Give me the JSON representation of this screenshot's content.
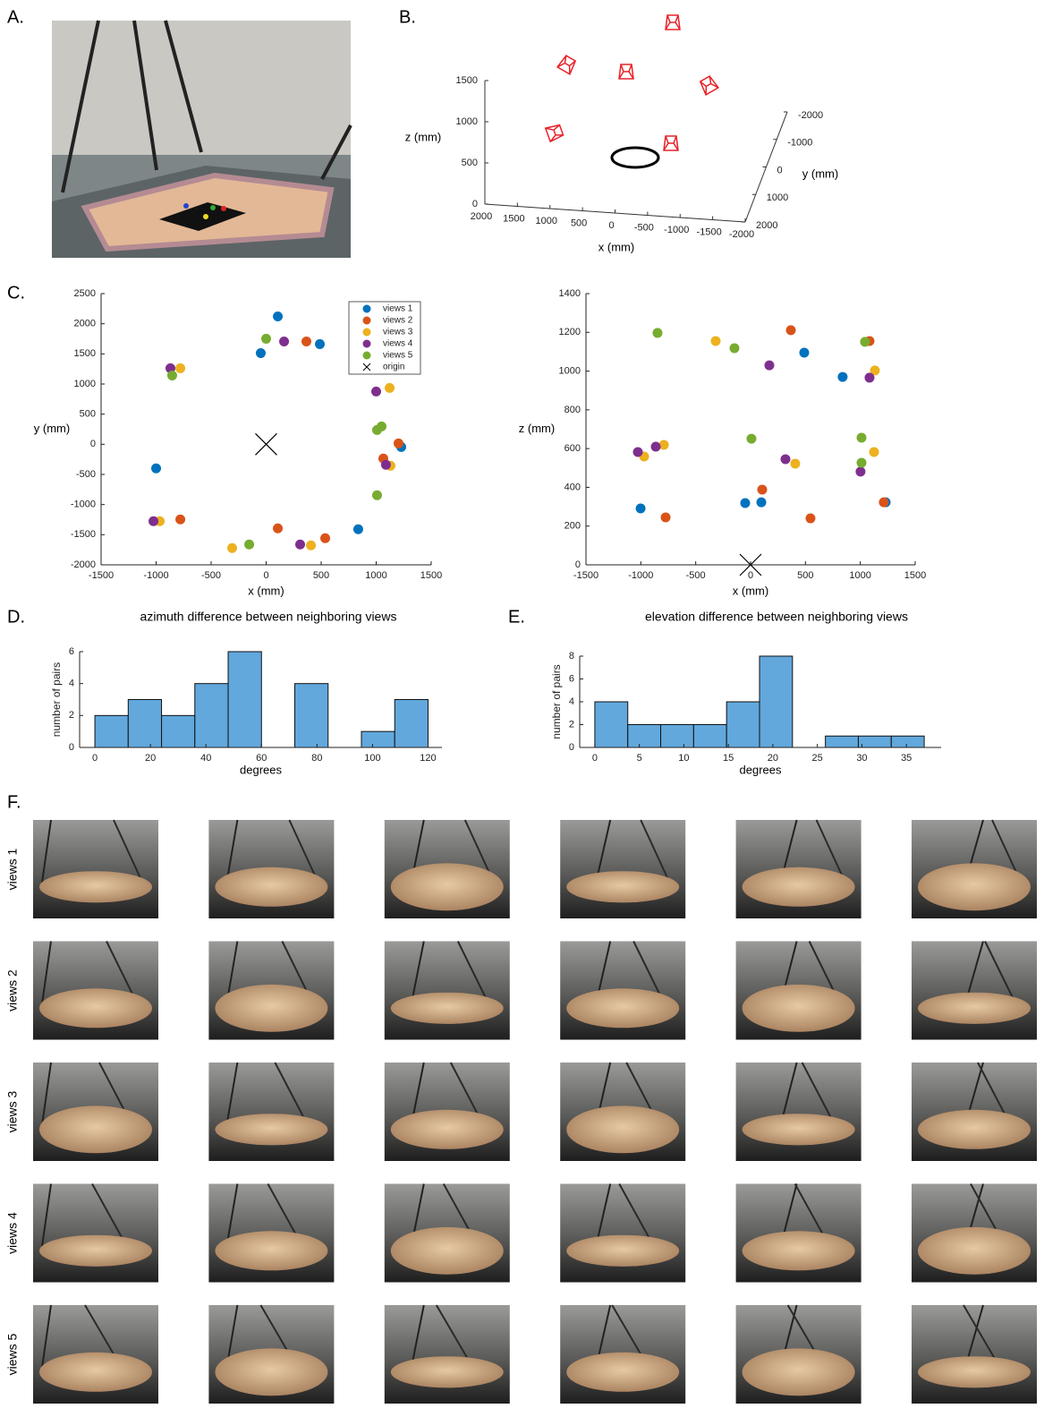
{
  "panel_labels": [
    "A.",
    "B.",
    "C.",
    "D.",
    "E.",
    "F."
  ],
  "chart_data": [
    {
      "type": "axes3d",
      "xlabel": "x (mm)",
      "ylabel": "y (mm)",
      "zlabel": "z (mm)",
      "xlim": [
        -2000,
        2000
      ],
      "ylim": [
        -2000,
        2000
      ],
      "zlim": [
        0,
        1500
      ],
      "xticks": [
        2000,
        1500,
        1000,
        500,
        0,
        -500,
        -1000,
        -1500,
        -2000
      ],
      "yticks": [
        -2000,
        -1000,
        0,
        1000,
        2000
      ],
      "zticks": [
        0,
        500,
        1000,
        1500
      ]
    },
    {
      "type": "scatter",
      "xlabel": "x (mm)",
      "ylabel": "y (mm)",
      "xlim": [
        -1500,
        1500
      ],
      "ylim": [
        -2000,
        2500
      ],
      "xticks": [
        -1500,
        -1000,
        -500,
        0,
        500,
        1000,
        1500
      ],
      "yticks": [
        -2000,
        -1500,
        -1000,
        -500,
        0,
        500,
        1000,
        1500,
        2000,
        2500
      ],
      "legend": "upper right",
      "series": [
        {
          "name": "views 1",
          "color": "#0072bd",
          "marker": "circle",
          "x": [
            106,
            -49,
            488,
            -1000,
            837,
            1228
          ],
          "y": [
            2122,
            1513,
            1662,
            -400,
            -1410,
            -45
          ]
        },
        {
          "name": "views 2",
          "color": "#d95319",
          "marker": "circle",
          "x": [
            366,
            1203,
            1065,
            -780,
            106,
            537
          ],
          "y": [
            1706,
            15,
            -237,
            -1246,
            -1395,
            -1558
          ]
        },
        {
          "name": "views 3",
          "color": "#edb120",
          "marker": "circle",
          "x": [
            -780,
            1122,
            1130,
            -967,
            -309,
            407
          ],
          "y": [
            1261,
            935,
            -356,
            -1276,
            -1721,
            -1677
          ]
        },
        {
          "name": "views 4",
          "color": "#7e2f8e",
          "marker": "circle",
          "x": [
            -870,
            163,
            1000,
            1089,
            -1024,
            309
          ],
          "y": [
            1261,
            1706,
            875,
            -341,
            -1276,
            -1662
          ]
        },
        {
          "name": "views 5",
          "color": "#77ac30",
          "marker": "circle",
          "x": [
            -854,
            0,
            1049,
            1008,
            1008,
            -154
          ],
          "y": [
            1142,
            1751,
            297,
            237,
            -846,
            -1662
          ]
        },
        {
          "name": "origin",
          "color": "#000000",
          "marker": "x",
          "x": [
            0
          ],
          "y": [
            0
          ]
        }
      ]
    },
    {
      "type": "scatter",
      "xlabel": "x (mm)",
      "ylabel": "z (mm)",
      "xlim": [
        -1500,
        1500
      ],
      "ylim": [
        0,
        1400
      ],
      "xticks": [
        -1500,
        -1000,
        -500,
        0,
        500,
        1000,
        1500
      ],
      "yticks": [
        0,
        200,
        400,
        600,
        800,
        1000,
        1200,
        1400
      ],
      "series": [
        {
          "color": "#0072bd",
          "marker": "circle",
          "x": [
            -1002,
            -49,
            98,
            489,
            839,
            1231
          ],
          "y": [
            291,
            319,
            323,
            1095,
            970,
            323
          ]
        },
        {
          "color": "#d95319",
          "marker": "circle",
          "x": [
            367,
            1084,
            106,
            -774,
            546,
            1214
          ],
          "y": [
            1211,
            1155,
            388,
            245,
            240,
            323
          ]
        },
        {
          "color": "#edb120",
          "marker": "circle",
          "x": [
            -318,
            1133,
            -970,
            -790,
            407,
            1125
          ],
          "y": [
            1155,
            1003,
            559,
            619,
            522,
            582
          ]
        },
        {
          "color": "#7e2f8e",
          "marker": "circle",
          "x": [
            -1027,
            -864,
            171,
            318,
            1084,
            1002
          ],
          "y": [
            582,
            610,
            1030,
            545,
            966,
            481
          ]
        },
        {
          "color": "#77ac30",
          "marker": "circle",
          "x": [
            -848,
            -147,
            8,
            1043,
            1011,
            1011
          ],
          "y": [
            1197,
            1118,
            651,
            1151,
            656,
            527
          ]
        },
        {
          "color": "#000000",
          "marker": "x",
          "x": [
            0
          ],
          "y": [
            0
          ]
        }
      ]
    },
    {
      "type": "histogram",
      "title": "azimuth difference between neighboring views",
      "xlabel": "degrees",
      "ylabel": "number of pairs",
      "bins": [
        0,
        12,
        24,
        36,
        48,
        60,
        72,
        84,
        96,
        108,
        120
      ],
      "counts": [
        2,
        3,
        2,
        4,
        6,
        0,
        4,
        0,
        1,
        3
      ],
      "color": "#62a8dd",
      "xlim": [
        -5.5,
        125
      ],
      "ylim": [
        0,
        6
      ],
      "xticks": [
        0,
        20,
        40,
        60,
        80,
        100,
        120
      ],
      "yticks": [
        0,
        2,
        4,
        6
      ]
    },
    {
      "type": "histogram",
      "title": "elevation difference between neighboring views",
      "xlabel": "degrees",
      "ylabel": "number of pairs",
      "bins": [
        0,
        3.7,
        7.4,
        11.1,
        14.8,
        18.5,
        22.2,
        25.9,
        29.6,
        33.3,
        37
      ],
      "counts": [
        4,
        2,
        2,
        2,
        4,
        8,
        0,
        1,
        1,
        1
      ],
      "color": "#62a8dd",
      "xlim": [
        -1.7,
        38.9
      ],
      "ylim": [
        0,
        8
      ],
      "xticks": [
        0,
        5,
        10,
        15,
        20,
        25,
        30,
        35
      ],
      "yticks": [
        0,
        2,
        4,
        6,
        8
      ]
    }
  ],
  "photo_grid": {
    "row_labels": [
      "views 1",
      "views 2",
      "views 3",
      "views 4",
      "views 5"
    ]
  }
}
